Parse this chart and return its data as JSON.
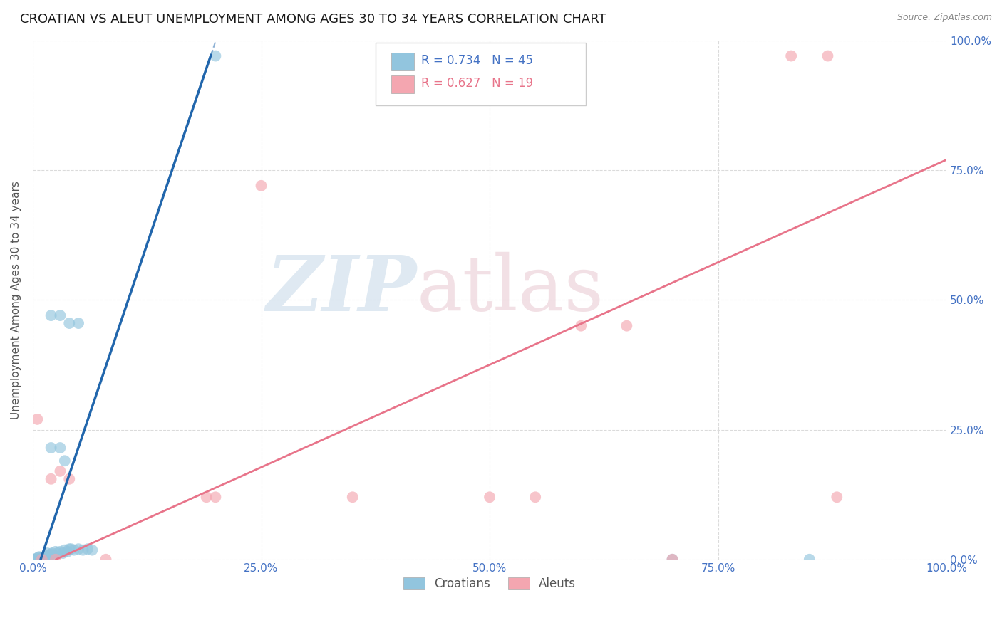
{
  "title": "CROATIAN VS ALEUT UNEMPLOYMENT AMONG AGES 30 TO 34 YEARS CORRELATION CHART",
  "source": "Source: ZipAtlas.com",
  "ylabel": "Unemployment Among Ages 30 to 34 years",
  "xlim": [
    0,
    1.0
  ],
  "ylim": [
    0,
    1.0
  ],
  "xticks": [
    0.0,
    0.25,
    0.5,
    0.75,
    1.0
  ],
  "yticks": [
    0.0,
    0.25,
    0.5,
    0.75,
    1.0
  ],
  "xticklabels": [
    "0.0%",
    "25.0%",
    "50.0%",
    "75.0%",
    "100.0%"
  ],
  "yticklabels": [
    "0.0%",
    "25.0%",
    "50.0%",
    "75.0%",
    "100.0%"
  ],
  "croatian_color": "#92c5de",
  "aleut_color": "#f4a6b0",
  "croatian_line_color": "#2166ac",
  "aleut_line_color": "#e8748a",
  "background_color": "#ffffff",
  "grid_color": "#cccccc",
  "title_fontsize": 13,
  "axis_label_fontsize": 11,
  "tick_fontsize": 11,
  "tick_color": "#4472c4",
  "croatian_R": "0.734",
  "croatian_N": "45",
  "aleut_R": "0.627",
  "aleut_N": "19",
  "croatian_scatter": [
    [
      0.0,
      0.0
    ],
    [
      0.002,
      0.0
    ],
    [
      0.003,
      0.0
    ],
    [
      0.004,
      0.002
    ],
    [
      0.005,
      0.0
    ],
    [
      0.006,
      0.003
    ],
    [
      0.007,
      0.005
    ],
    [
      0.008,
      0.0
    ],
    [
      0.009,
      0.002
    ],
    [
      0.01,
      0.003
    ],
    [
      0.011,
      0.0
    ],
    [
      0.012,
      0.005
    ],
    [
      0.013,
      0.003
    ],
    [
      0.014,
      0.006
    ],
    [
      0.015,
      0.008
    ],
    [
      0.016,
      0.012
    ],
    [
      0.017,
      0.005
    ],
    [
      0.018,
      0.003
    ],
    [
      0.019,
      0.008
    ],
    [
      0.02,
      0.01
    ],
    [
      0.021,
      0.012
    ],
    [
      0.023,
      0.008
    ],
    [
      0.025,
      0.015
    ],
    [
      0.027,
      0.012
    ],
    [
      0.03,
      0.015
    ],
    [
      0.033,
      0.012
    ],
    [
      0.035,
      0.018
    ],
    [
      0.038,
      0.015
    ],
    [
      0.04,
      0.02
    ],
    [
      0.042,
      0.02
    ],
    [
      0.045,
      0.018
    ],
    [
      0.05,
      0.02
    ],
    [
      0.055,
      0.018
    ],
    [
      0.06,
      0.02
    ],
    [
      0.065,
      0.018
    ],
    [
      0.02,
      0.215
    ],
    [
      0.03,
      0.215
    ],
    [
      0.04,
      0.455
    ],
    [
      0.05,
      0.455
    ],
    [
      0.02,
      0.47
    ],
    [
      0.03,
      0.47
    ],
    [
      0.035,
      0.19
    ],
    [
      0.2,
      0.97
    ],
    [
      0.7,
      0.0
    ],
    [
      0.85,
      0.0
    ]
  ],
  "aleut_scatter": [
    [
      0.005,
      0.27
    ],
    [
      0.01,
      0.0
    ],
    [
      0.02,
      0.155
    ],
    [
      0.025,
      0.0
    ],
    [
      0.03,
      0.17
    ],
    [
      0.04,
      0.155
    ],
    [
      0.08,
      0.0
    ],
    [
      0.19,
      0.12
    ],
    [
      0.2,
      0.12
    ],
    [
      0.25,
      0.72
    ],
    [
      0.5,
      0.12
    ],
    [
      0.55,
      0.12
    ],
    [
      0.6,
      0.45
    ],
    [
      0.65,
      0.45
    ],
    [
      0.7,
      0.0
    ],
    [
      0.83,
      0.97
    ],
    [
      0.87,
      0.97
    ],
    [
      0.88,
      0.12
    ],
    [
      0.35,
      0.12
    ]
  ],
  "croatian_line": [
    [
      0.0,
      -0.045
    ],
    [
      0.21,
      1.05
    ]
  ],
  "croatian_line_solid": [
    [
      0.0,
      -0.045
    ],
    [
      0.21,
      1.05
    ]
  ],
  "aleut_line": [
    [
      0.0,
      -0.02
    ],
    [
      1.0,
      0.77
    ]
  ]
}
